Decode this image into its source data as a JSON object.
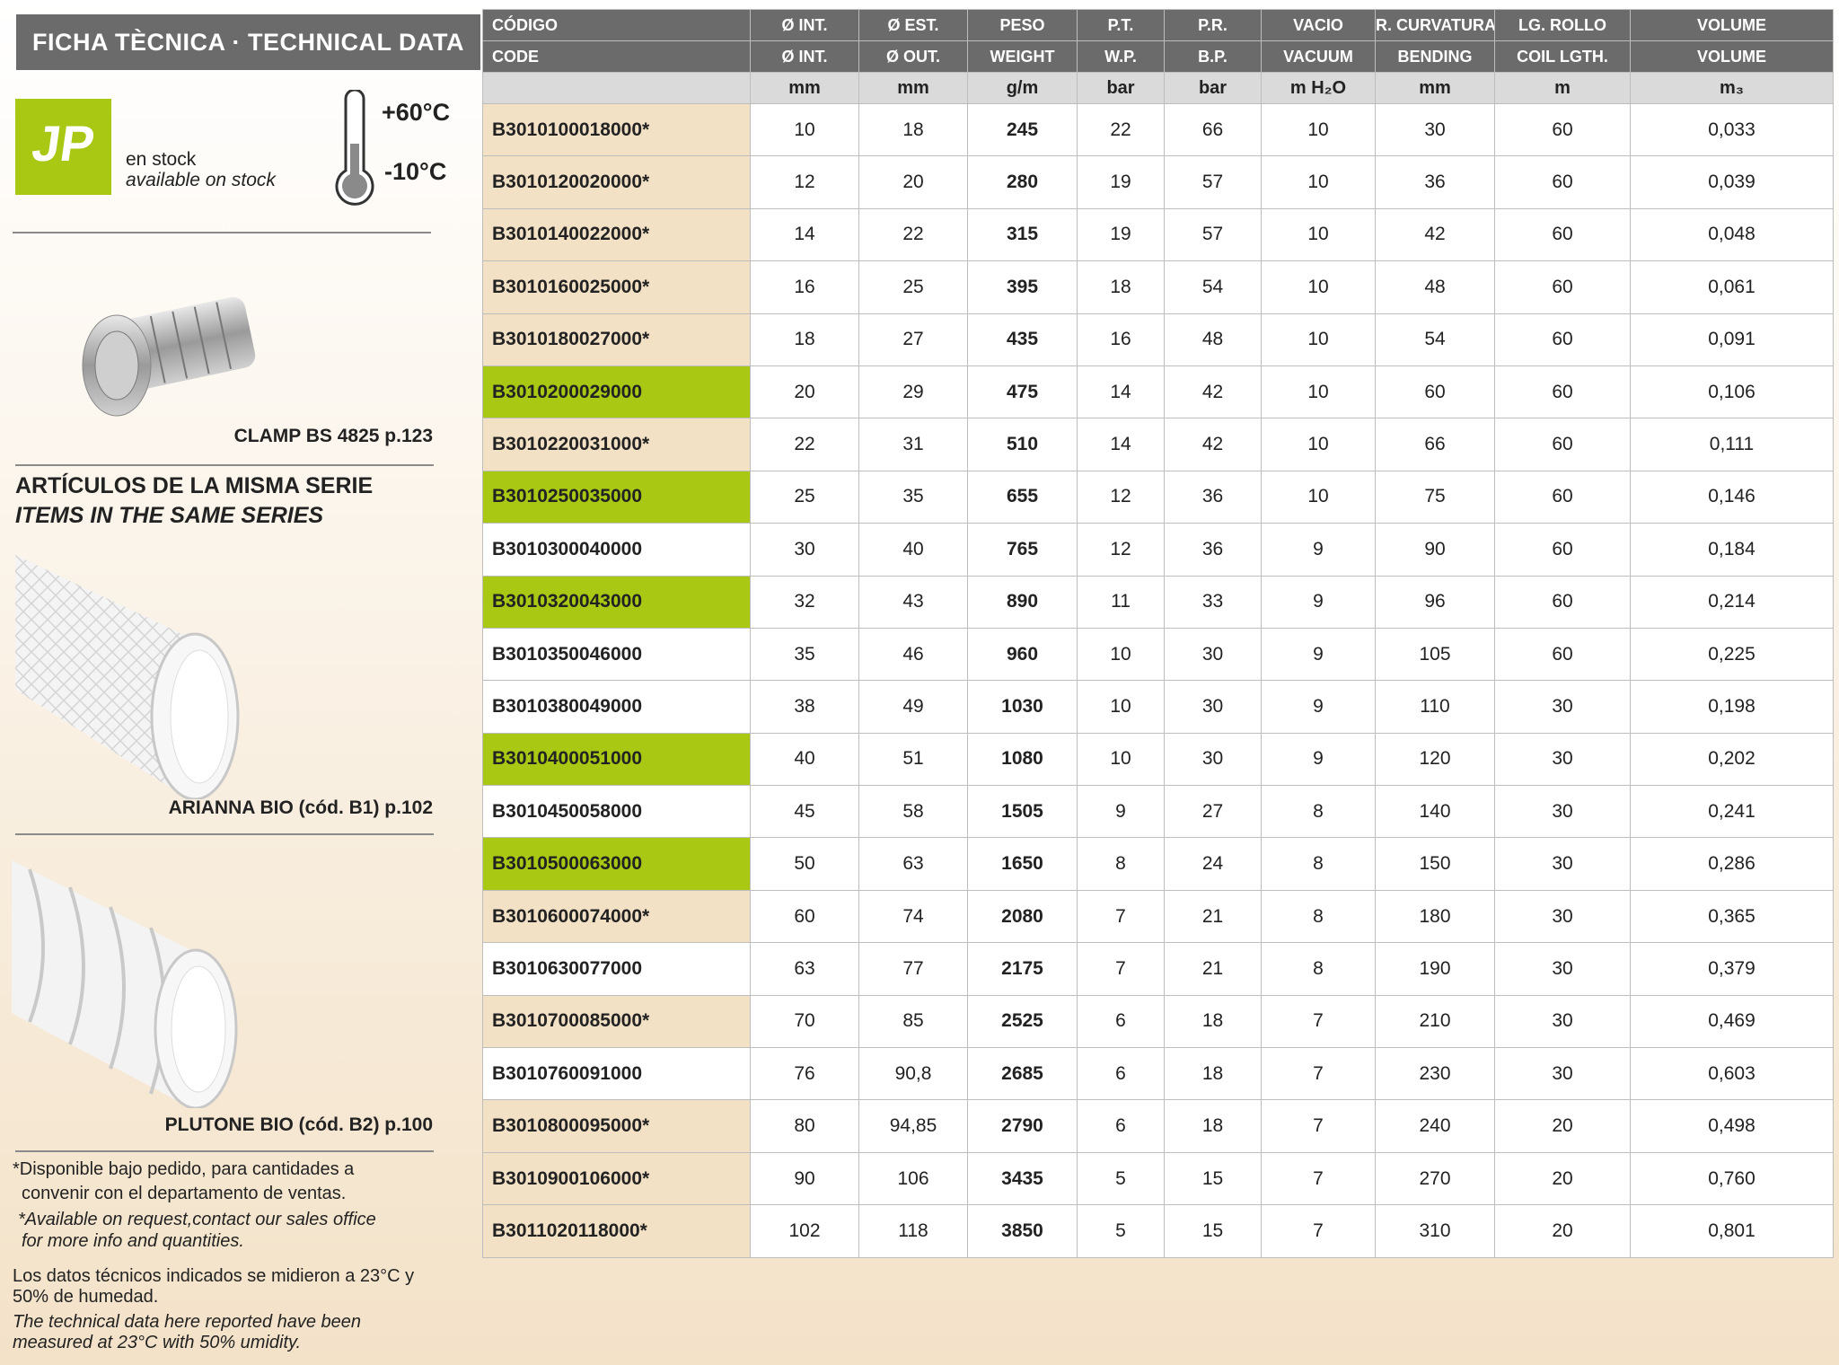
{
  "header": {
    "title": "FICHA TÈCNICA · TECHNICAL DATA"
  },
  "stock": {
    "logo": "JP",
    "label": "en stock",
    "label_en": "available on stock",
    "temp_max": "+60°C",
    "temp_min": "-10°C"
  },
  "accessory": {
    "caption": "CLAMP BS 4825 p.123"
  },
  "series": {
    "title": "ARTÍCULOS DE LA MISMA SERIE",
    "subtitle": "ITEMS IN THE SAME SERIES",
    "items": [
      "ARIANNA BIO (cód. B1) p.102",
      "PLUTONE BIO (cód. B2) p.100"
    ]
  },
  "notes": {
    "request": [
      "*Disponible bajo pedido, para cantidades a",
      "convenir con el departamento de ventas."
    ],
    "request_en": [
      "*Available on request,contact our sales office",
      "for more info and quantities."
    ],
    "measure": [
      "Los datos técnicos indicados se midieron a 23°C y",
      "50% de humedad."
    ],
    "measure_en": [
      "The technical data here reported have been",
      "measured at 23°C with 50% umidity."
    ]
  },
  "table": {
    "header_es": [
      "CÓDIGO",
      "Ø INT.",
      "Ø EST.",
      "PESO",
      "P.T.",
      "P.R.",
      "VACIO",
      "R. CURVATURA",
      "LG. ROLLO",
      "VOLUME"
    ],
    "header_en": [
      "CODE",
      "Ø INT.",
      "Ø OUT.",
      "WEIGHT",
      "W.P.",
      "B.P.",
      "VACUUM",
      "BENDING",
      "COIL LGTH.",
      "VOLUME"
    ],
    "units": [
      "mm",
      "mm",
      "g/m",
      "bar",
      "bar",
      "m H₂O",
      "mm",
      "m",
      "m₃"
    ],
    "rows": [
      {
        "code_color": "#f3e1c6",
        "cells": [
          "B3010100018000*",
          "10",
          "18",
          "245",
          "22",
          "66",
          "10",
          "30",
          "60",
          "0,033"
        ]
      },
      {
        "code_color": "#f3e1c6",
        "cells": [
          "B3010120020000*",
          "12",
          "20",
          "280",
          "19",
          "57",
          "10",
          "36",
          "60",
          "0,039"
        ]
      },
      {
        "code_color": "#f3e1c6",
        "cells": [
          "B3010140022000*",
          "14",
          "22",
          "315",
          "19",
          "57",
          "10",
          "42",
          "60",
          "0,048"
        ]
      },
      {
        "code_color": "#f3e1c6",
        "cells": [
          "B3010160025000*",
          "16",
          "25",
          "395",
          "18",
          "54",
          "10",
          "48",
          "60",
          "0,061"
        ]
      },
      {
        "code_color": "#f3e1c6",
        "cells": [
          "B3010180027000*",
          "18",
          "27",
          "435",
          "16",
          "48",
          "10",
          "54",
          "60",
          "0,091"
        ]
      },
      {
        "code_color": "#a8c813",
        "cells": [
          "B3010200029000",
          "20",
          "29",
          "475",
          "14",
          "42",
          "10",
          "60",
          "60",
          "0,106"
        ]
      },
      {
        "code_color": "#f3e1c6",
        "cells": [
          "B3010220031000*",
          "22",
          "31",
          "510",
          "14",
          "42",
          "10",
          "66",
          "60",
          "0,111"
        ]
      },
      {
        "code_color": "#a8c813",
        "cells": [
          "B3010250035000",
          "25",
          "35",
          "655",
          "12",
          "36",
          "10",
          "75",
          "60",
          "0,146"
        ]
      },
      {
        "code_color": "#ffffff",
        "cells": [
          "B3010300040000",
          "30",
          "40",
          "765",
          "12",
          "36",
          "9",
          "90",
          "60",
          "0,184"
        ]
      },
      {
        "code_color": "#a8c813",
        "cells": [
          "B3010320043000",
          "32",
          "43",
          "890",
          "11",
          "33",
          "9",
          "96",
          "60",
          "0,214"
        ]
      },
      {
        "code_color": "#ffffff",
        "cells": [
          "B3010350046000",
          "35",
          "46",
          "960",
          "10",
          "30",
          "9",
          "105",
          "60",
          "0,225"
        ]
      },
      {
        "code_color": "#ffffff",
        "cells": [
          "B3010380049000",
          "38",
          "49",
          "1030",
          "10",
          "30",
          "9",
          "110",
          "30",
          "0,198"
        ]
      },
      {
        "code_color": "#a8c813",
        "cells": [
          "B3010400051000",
          "40",
          "51",
          "1080",
          "10",
          "30",
          "9",
          "120",
          "30",
          "0,202"
        ]
      },
      {
        "code_color": "#ffffff",
        "cells": [
          "B3010450058000",
          "45",
          "58",
          "1505",
          "9",
          "27",
          "8",
          "140",
          "30",
          "0,241"
        ]
      },
      {
        "code_color": "#a8c813",
        "cells": [
          "B3010500063000",
          "50",
          "63",
          "1650",
          "8",
          "24",
          "8",
          "150",
          "30",
          "0,286"
        ]
      },
      {
        "code_color": "#f3e1c6",
        "cells": [
          "B3010600074000*",
          "60",
          "74",
          "2080",
          "7",
          "21",
          "8",
          "180",
          "30",
          "0,365"
        ]
      },
      {
        "code_color": "#ffffff",
        "cells": [
          "B3010630077000",
          "63",
          "77",
          "2175",
          "7",
          "21",
          "8",
          "190",
          "30",
          "0,379"
        ]
      },
      {
        "code_color": "#f3e1c6",
        "cells": [
          "B3010700085000*",
          "70",
          "85",
          "2525",
          "6",
          "18",
          "7",
          "210",
          "30",
          "0,469"
        ]
      },
      {
        "code_color": "#ffffff",
        "cells": [
          "B3010760091000",
          "76",
          "90,8",
          "2685",
          "6",
          "18",
          "7",
          "230",
          "30",
          "0,603"
        ]
      },
      {
        "code_color": "#f3e1c6",
        "cells": [
          "B3010800095000*",
          "80",
          "94,85",
          "2790",
          "6",
          "18",
          "7",
          "240",
          "20",
          "0,498"
        ]
      },
      {
        "code_color": "#f3e1c6",
        "cells": [
          "B3010900106000*",
          "90",
          "106",
          "3435",
          "5",
          "15",
          "7",
          "270",
          "20",
          "0,760"
        ]
      },
      {
        "code_color": "#f3e1c6",
        "cells": [
          "B3011020118000*",
          "102",
          "118",
          "3850",
          "5",
          "15",
          "7",
          "310",
          "20",
          "0,801"
        ]
      }
    ]
  }
}
